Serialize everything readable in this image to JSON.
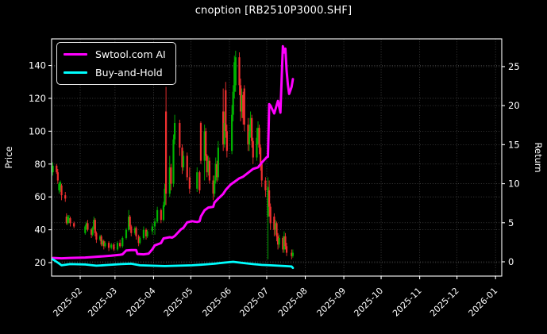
{
  "title": "cnoption [RB2510P3000.SHF]",
  "legend": {
    "items": [
      {
        "label": "Swtool.com AI",
        "color": "#ff00ff"
      },
      {
        "label": "Buy-and-Hold",
        "color": "#00ffff"
      }
    ]
  },
  "colors": {
    "background": "#000000",
    "foreground": "#ffffff",
    "grid": "rgba(255,255,255,0.28)",
    "ai_line": "#ff00ff",
    "bh_line": "#00ffff",
    "candle_up": "#00b300",
    "candle_down": "#f03030"
  },
  "chart_data": {
    "type": "candlestick+line",
    "title": "cnoption [RB2510P3000.SHF]",
    "grid": true,
    "legend_position": "upper-left",
    "x_axis": {
      "start": "2025-01-09",
      "end": "2026-01-06",
      "ticks": [
        {
          "date": "2025-02-01",
          "label": "2025-02"
        },
        {
          "date": "2025-03-01",
          "label": "2025-03"
        },
        {
          "date": "2025-04-01",
          "label": "2025-04"
        },
        {
          "date": "2025-05-01",
          "label": "2025-05"
        },
        {
          "date": "2025-06-01",
          "label": "2025-06"
        },
        {
          "date": "2025-07-01",
          "label": "2025-07"
        },
        {
          "date": "2025-08-01",
          "label": "2025-08"
        },
        {
          "date": "2025-09-01",
          "label": "2025-09"
        },
        {
          "date": "2025-10-01",
          "label": "2025-10"
        },
        {
          "date": "2025-11-01",
          "label": "2025-11"
        },
        {
          "date": "2025-12-01",
          "label": "2025-12"
        },
        {
          "date": "2026-01-01",
          "label": "2026-01"
        }
      ]
    },
    "left_axis": {
      "label": "Price",
      "range": [
        11.8,
        156.2
      ],
      "ticks": [
        20,
        40,
        60,
        80,
        100,
        120,
        140
      ]
    },
    "right_axis": {
      "label": "Return",
      "range": [
        -1.83,
        28.55
      ],
      "ticks": [
        0,
        5,
        10,
        15,
        20,
        25
      ]
    },
    "candles": [
      [
        "2025-01-10",
        75,
        81,
        73,
        79
      ],
      [
        "2025-01-13",
        79,
        80,
        74,
        75
      ],
      [
        "2025-01-14",
        75,
        77,
        68,
        70
      ],
      [
        "2025-01-15",
        64,
        69,
        62,
        68
      ],
      [
        "2025-01-16",
        66,
        70,
        63,
        69
      ],
      [
        "2025-01-17",
        67,
        68,
        58,
        61
      ],
      [
        "2025-01-20",
        61,
        63,
        57,
        59
      ],
      [
        "2025-01-21",
        48,
        50,
        43,
        44
      ],
      [
        "2025-01-22",
        44,
        49,
        43,
        48
      ],
      [
        "2025-01-23",
        46,
        49,
        44,
        47
      ],
      [
        "2025-01-24",
        47,
        48,
        42,
        44
      ],
      [
        "2025-01-27",
        44,
        45,
        41,
        42
      ],
      [
        "2025-02-05",
        38,
        43,
        37,
        42
      ],
      [
        "2025-02-06",
        42,
        45,
        40,
        44
      ],
      [
        "2025-02-07",
        44,
        46,
        39,
        40
      ],
      [
        "2025-02-10",
        40,
        41,
        35,
        37
      ],
      [
        "2025-02-11",
        37,
        42,
        36,
        41
      ],
      [
        "2025-02-12",
        41,
        48,
        40,
        46
      ],
      [
        "2025-02-13",
        46,
        47,
        36,
        38
      ],
      [
        "2025-02-14",
        38,
        39,
        32,
        34
      ],
      [
        "2025-02-17",
        34,
        37,
        33,
        36
      ],
      [
        "2025-02-18",
        36,
        37,
        30,
        31
      ],
      [
        "2025-02-19",
        31,
        34,
        30,
        33
      ],
      [
        "2025-02-20",
        33,
        34,
        28,
        30
      ],
      [
        "2025-02-21",
        30,
        33,
        29,
        32
      ],
      [
        "2025-02-24",
        32,
        33,
        27,
        29
      ],
      [
        "2025-02-26",
        29,
        32,
        28,
        31
      ],
      [
        "2025-02-28",
        31,
        32,
        27,
        28
      ],
      [
        "2025-03-03",
        28,
        33,
        27,
        32
      ],
      [
        "2025-03-05",
        32,
        34,
        29,
        30
      ],
      [
        "2025-03-07",
        30,
        36,
        29,
        35
      ],
      [
        "2025-03-10",
        35,
        41,
        34,
        40
      ],
      [
        "2025-03-12",
        40,
        52,
        39,
        48
      ],
      [
        "2025-03-13",
        48,
        49,
        40,
        42
      ],
      [
        "2025-03-14",
        42,
        43,
        36,
        38
      ],
      [
        "2025-03-17",
        38,
        42,
        37,
        41
      ],
      [
        "2025-03-18",
        41,
        42,
        34,
        36
      ],
      [
        "2025-03-20",
        36,
        37,
        30,
        32
      ],
      [
        "2025-03-21",
        32,
        36,
        31,
        35
      ],
      [
        "2025-03-24",
        35,
        42,
        34,
        40
      ],
      [
        "2025-03-26",
        40,
        41,
        34,
        36
      ],
      [
        "2025-03-27",
        36,
        40,
        35,
        39
      ],
      [
        "2025-03-31",
        39,
        44,
        37,
        42
      ],
      [
        "2025-04-02",
        42,
        47,
        37,
        45
      ],
      [
        "2025-04-04",
        45,
        54,
        44,
        52
      ],
      [
        "2025-04-07",
        52,
        53,
        44,
        46
      ],
      [
        "2025-04-09",
        46,
        57,
        45,
        55
      ],
      [
        "2025-04-10",
        55,
        68,
        54,
        65
      ],
      [
        "2025-04-11",
        112,
        127,
        55,
        62
      ],
      [
        "2025-04-14",
        62,
        85,
        60,
        78
      ],
      [
        "2025-04-15",
        78,
        80,
        64,
        68
      ],
      [
        "2025-04-17",
        68,
        98,
        66,
        95
      ],
      [
        "2025-04-18",
        95,
        110,
        92,
        105
      ],
      [
        "2025-04-22",
        105,
        107,
        85,
        90
      ],
      [
        "2025-04-24",
        90,
        92,
        74,
        78
      ],
      [
        "2025-04-25",
        78,
        88,
        76,
        85
      ],
      [
        "2025-04-28",
        85,
        87,
        70,
        72
      ],
      [
        "2025-04-30",
        72,
        78,
        62,
        65
      ],
      [
        "2025-05-06",
        65,
        78,
        63,
        75
      ],
      [
        "2025-05-08",
        75,
        76,
        62,
        64
      ],
      [
        "2025-05-09",
        105,
        106,
        80,
        82
      ],
      [
        "2025-05-12",
        82,
        104,
        70,
        100
      ],
      [
        "2025-05-13",
        100,
        102,
        82,
        85
      ],
      [
        "2025-05-14",
        85,
        86,
        72,
        75
      ],
      [
        "2025-05-15",
        75,
        85,
        73,
        82
      ],
      [
        "2025-05-16",
        82,
        84,
        68,
        70
      ],
      [
        "2025-05-19",
        70,
        73,
        58,
        62
      ],
      [
        "2025-05-20",
        62,
        73,
        60,
        70
      ],
      [
        "2025-05-21",
        70,
        84,
        68,
        80
      ],
      [
        "2025-05-22",
        80,
        82,
        69,
        72
      ],
      [
        "2025-05-23",
        72,
        94,
        70,
        90
      ],
      [
        "2025-05-27",
        112,
        126,
        88,
        92
      ],
      [
        "2025-05-28",
        92,
        112,
        90,
        105
      ],
      [
        "2025-05-29",
        125,
        130,
        96,
        100
      ],
      [
        "2025-05-30",
        100,
        104,
        84,
        88
      ],
      [
        "2025-06-03",
        88,
        116,
        86,
        110
      ],
      [
        "2025-06-04",
        110,
        128,
        106,
        124
      ],
      [
        "2025-06-05",
        124,
        146,
        120,
        142
      ],
      [
        "2025-06-06",
        128,
        149,
        124,
        145
      ],
      [
        "2025-06-09",
        145,
        148,
        122,
        128
      ],
      [
        "2025-06-10",
        128,
        132,
        106,
        112
      ],
      [
        "2025-06-11",
        112,
        126,
        108,
        122
      ],
      [
        "2025-06-12",
        122,
        124,
        104,
        108
      ],
      [
        "2025-06-13",
        126,
        128,
        100,
        104
      ],
      [
        "2025-06-16",
        104,
        108,
        88,
        92
      ],
      [
        "2025-06-17",
        92,
        104,
        88,
        100
      ],
      [
        "2025-06-18",
        100,
        112,
        96,
        108
      ],
      [
        "2025-06-19",
        108,
        110,
        90,
        94
      ],
      [
        "2025-06-20",
        94,
        96,
        80,
        84
      ],
      [
        "2025-06-23",
        84,
        102,
        82,
        96
      ],
      [
        "2025-06-24",
        96,
        106,
        92,
        102
      ],
      [
        "2025-06-25",
        102,
        104,
        86,
        90
      ],
      [
        "2025-06-26",
        90,
        92,
        76,
        80
      ],
      [
        "2025-06-27",
        80,
        82,
        66,
        70
      ],
      [
        "2025-06-30",
        70,
        72,
        60,
        64
      ],
      [
        "2025-07-02",
        48,
        72,
        22,
        66
      ],
      [
        "2025-07-03",
        64,
        70,
        48,
        54
      ],
      [
        "2025-07-04",
        54,
        56,
        40,
        44
      ],
      [
        "2025-07-07",
        48,
        50,
        36,
        40
      ],
      [
        "2025-07-08",
        40,
        46,
        37,
        44
      ],
      [
        "2025-07-09",
        44,
        45,
        33,
        36
      ],
      [
        "2025-07-10",
        36,
        38,
        28,
        31
      ],
      [
        "2025-07-11",
        31,
        37,
        29,
        35
      ],
      [
        "2025-07-14",
        35,
        36,
        26,
        28
      ],
      [
        "2025-07-15",
        28,
        39,
        26,
        36
      ],
      [
        "2025-07-16",
        36,
        38,
        28,
        30
      ],
      [
        "2025-07-17",
        30,
        32,
        24,
        26
      ],
      [
        "2025-07-21",
        26,
        28,
        22,
        24
      ],
      [
        "2025-07-22",
        24,
        28,
        23,
        26
      ]
    ],
    "series": [
      {
        "name": "Swtool.com AI",
        "axis": "right",
        "color": "#ff00ff",
        "width": 3,
        "points": [
          [
            "2025-01-10",
            0.5
          ],
          [
            "2025-01-17",
            0.45
          ],
          [
            "2025-01-24",
            0.5
          ],
          [
            "2025-02-05",
            0.55
          ],
          [
            "2025-02-12",
            0.62
          ],
          [
            "2025-02-19",
            0.7
          ],
          [
            "2025-02-26",
            0.78
          ],
          [
            "2025-03-05",
            0.9
          ],
          [
            "2025-03-07",
            0.95
          ],
          [
            "2025-03-10",
            1.45
          ],
          [
            "2025-03-14",
            1.5
          ],
          [
            "2025-03-18",
            1.5
          ],
          [
            "2025-03-19",
            1.0
          ],
          [
            "2025-03-24",
            0.95
          ],
          [
            "2025-03-28",
            1.05
          ],
          [
            "2025-03-31",
            1.6
          ],
          [
            "2025-04-02",
            2.1
          ],
          [
            "2025-04-07",
            2.4
          ],
          [
            "2025-04-09",
            3.0
          ],
          [
            "2025-04-14",
            3.15
          ],
          [
            "2025-04-16",
            3.1
          ],
          [
            "2025-04-18",
            3.3
          ],
          [
            "2025-04-23",
            4.15
          ],
          [
            "2025-04-25",
            4.35
          ],
          [
            "2025-04-28",
            5.05
          ],
          [
            "2025-05-02",
            5.2
          ],
          [
            "2025-05-06",
            5.1
          ],
          [
            "2025-05-08",
            5.2
          ],
          [
            "2025-05-09",
            5.8
          ],
          [
            "2025-05-12",
            6.6
          ],
          [
            "2025-05-15",
            6.95
          ],
          [
            "2025-05-19",
            7.05
          ],
          [
            "2025-05-20",
            7.6
          ],
          [
            "2025-05-23",
            8.1
          ],
          [
            "2025-05-27",
            8.7
          ],
          [
            "2025-05-29",
            9.2
          ],
          [
            "2025-06-02",
            9.9
          ],
          [
            "2025-06-06",
            10.35
          ],
          [
            "2025-06-09",
            10.7
          ],
          [
            "2025-06-12",
            10.9
          ],
          [
            "2025-06-16",
            11.4
          ],
          [
            "2025-06-20",
            11.9
          ],
          [
            "2025-06-24",
            12.1
          ],
          [
            "2025-06-27",
            12.7
          ],
          [
            "2025-07-01",
            13.4
          ],
          [
            "2025-07-02",
            13.45
          ],
          [
            "2025-07-03",
            20.2
          ],
          [
            "2025-07-04",
            20.0
          ],
          [
            "2025-07-07",
            19.0
          ],
          [
            "2025-07-10",
            20.6
          ],
          [
            "2025-07-12",
            19.1
          ],
          [
            "2025-07-14",
            27.6
          ],
          [
            "2025-07-15",
            26.8
          ],
          [
            "2025-07-16",
            27.3
          ],
          [
            "2025-07-17",
            24.5
          ],
          [
            "2025-07-18",
            22.7
          ],
          [
            "2025-07-19",
            21.5
          ],
          [
            "2025-07-21",
            22.4
          ],
          [
            "2025-07-22",
            23.4
          ]
        ]
      },
      {
        "name": "Buy-and-Hold",
        "axis": "right",
        "color": "#00ffff",
        "width": 2.8,
        "points": [
          [
            "2025-01-10",
            0.3
          ],
          [
            "2025-01-14",
            -0.1
          ],
          [
            "2025-01-17",
            -0.45
          ],
          [
            "2025-01-24",
            -0.3
          ],
          [
            "2025-02-05",
            -0.35
          ],
          [
            "2025-02-14",
            -0.5
          ],
          [
            "2025-02-24",
            -0.4
          ],
          [
            "2025-03-06",
            -0.3
          ],
          [
            "2025-03-14",
            -0.25
          ],
          [
            "2025-03-21",
            -0.45
          ],
          [
            "2025-03-31",
            -0.5
          ],
          [
            "2025-04-10",
            -0.55
          ],
          [
            "2025-04-21",
            -0.5
          ],
          [
            "2025-05-02",
            -0.45
          ],
          [
            "2025-05-12",
            -0.35
          ],
          [
            "2025-05-20",
            -0.25
          ],
          [
            "2025-05-28",
            -0.1
          ],
          [
            "2025-06-04",
            0.0
          ],
          [
            "2025-06-12",
            -0.15
          ],
          [
            "2025-06-20",
            -0.3
          ],
          [
            "2025-06-27",
            -0.4
          ],
          [
            "2025-07-04",
            -0.45
          ],
          [
            "2025-07-10",
            -0.5
          ],
          [
            "2025-07-16",
            -0.55
          ],
          [
            "2025-07-21",
            -0.6
          ],
          [
            "2025-07-22",
            -0.78
          ]
        ]
      }
    ]
  }
}
